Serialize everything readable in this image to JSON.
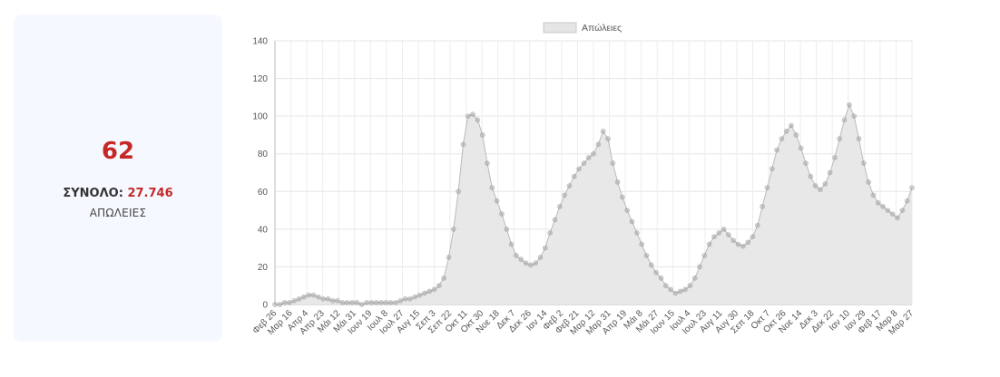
{
  "stat": {
    "value": "62",
    "total_label": "ΣΥΝΟΛΟ:",
    "total_value": "27.746",
    "caption": "ΑΠΩΛΕΙΕΣ"
  },
  "chart_data": {
    "type": "line",
    "legend": {
      "label": "Απώλειες",
      "position": "top-center"
    },
    "ylim": [
      0,
      140
    ],
    "yticks": [
      0,
      20,
      40,
      60,
      80,
      100,
      120,
      140
    ],
    "grid": true,
    "colors": {
      "fill": "#e5e5e5",
      "line": "#bbbbbb",
      "point": "#9a9a9a"
    },
    "xlabels": [
      "Φεβ 26",
      "Μαρ 16",
      "Απρ 4",
      "Απρ 23",
      "Μάι 12",
      "Μάι 31",
      "Ιουν 19",
      "Ιουλ 8",
      "Ιουλ 27",
      "Αυγ 15",
      "Σεπ 3",
      "Σεπ 22",
      "Οκτ 11",
      "Οκτ 30",
      "Νοε 18",
      "Δεκ 7",
      "Δεκ 26",
      "Ιαν 14",
      "Φεβ 2",
      "Φεβ 21",
      "Μαρ 12",
      "Μαρ 31",
      "Απρ 19",
      "Μάι 8",
      "Μάι 27",
      "Ιουν 15",
      "Ιουλ 4",
      "Ιουλ 23",
      "Αυγ 11",
      "Αυγ 30",
      "Σεπ 18",
      "Οκτ 7",
      "Οκτ 26",
      "Νοε 14",
      "Δεκ 3",
      "Δεκ 22",
      "Ιαν 10",
      "Ιαν 29",
      "Φεβ 17",
      "Μαρ 8",
      "Μαρ 27"
    ],
    "series": [
      {
        "values": [
          0,
          0,
          1,
          1,
          2,
          3,
          4,
          5,
          5,
          4,
          3,
          3,
          2,
          2,
          1,
          1,
          1,
          1,
          0,
          1,
          1,
          1,
          1,
          1,
          1,
          1,
          2,
          3,
          3,
          4,
          5,
          6,
          7,
          8,
          10,
          14,
          25,
          40,
          60,
          85,
          100,
          101,
          98,
          90,
          75,
          62,
          55,
          48,
          40,
          32,
          26,
          24,
          22,
          21,
          22,
          25,
          30,
          38,
          45,
          52,
          58,
          63,
          68,
          72,
          75,
          78,
          80,
          85,
          92,
          88,
          75,
          65,
          57,
          50,
          44,
          38,
          32,
          26,
          21,
          17,
          14,
          10,
          8,
          6,
          7,
          8,
          10,
          14,
          20,
          26,
          32,
          36,
          38,
          40,
          37,
          34,
          32,
          31,
          33,
          36,
          42,
          52,
          62,
          72,
          82,
          88,
          92,
          95,
          90,
          83,
          75,
          68,
          63,
          61,
          64,
          70,
          78,
          88,
          98,
          106,
          100,
          88,
          75,
          65,
          58,
          54,
          52,
          50,
          48,
          46,
          50,
          55,
          62
        ]
      }
    ]
  }
}
